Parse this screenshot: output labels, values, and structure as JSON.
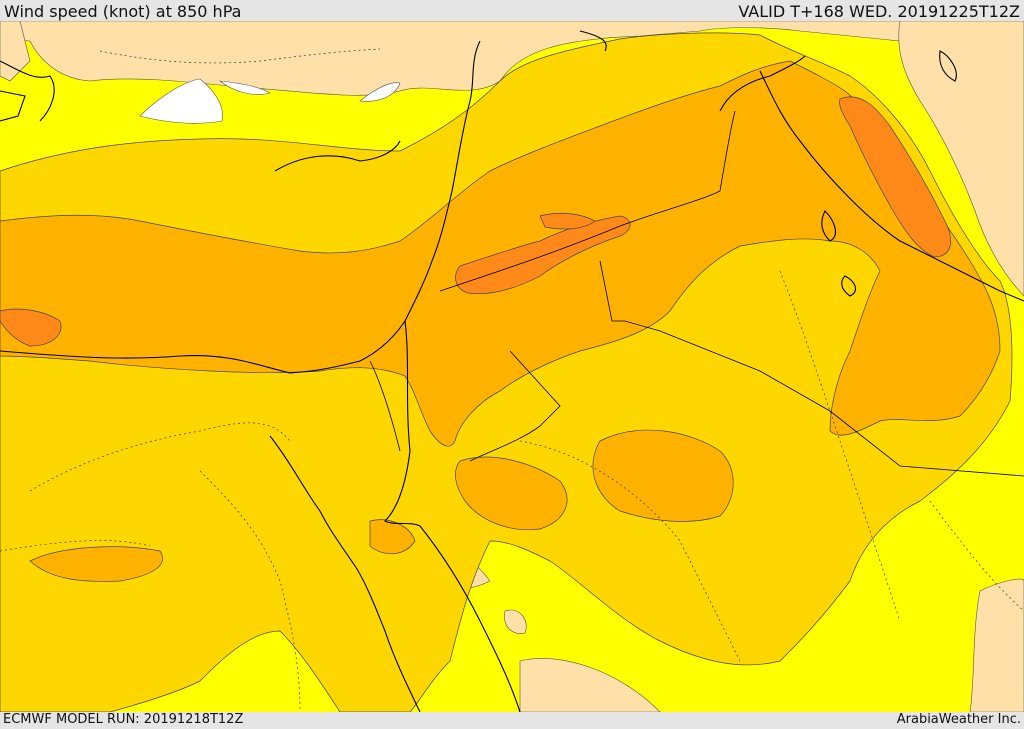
{
  "header": {
    "title": "Wind speed (knot) at 850 hPa",
    "valid": "VALID T+168 WED. 20191225T12Z"
  },
  "footer": {
    "model_run": "ECMWF MODEL RUN: 20191218T12Z",
    "credit": "ArabiaWeather Inc."
  },
  "palette": {
    "calm": "#ffffff",
    "very_low": "#ffe0a8",
    "low": "#ffff00",
    "moderate": "#ffd700",
    "high": "#ffb300",
    "very_high": "#ff8a1a",
    "coast": "#000000"
  }
}
